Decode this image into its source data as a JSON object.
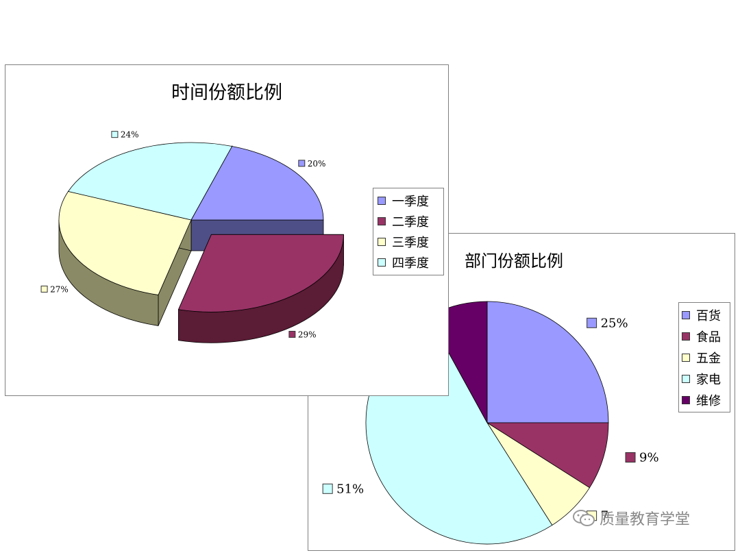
{
  "chart_data": [
    {
      "type": "pie",
      "title": "时间份额比例",
      "categories": [
        "一季度",
        "二季度",
        "三季度",
        "四季度"
      ],
      "values": [
        20,
        29,
        27,
        24
      ],
      "data_labels": [
        "20%",
        "29%",
        "27%",
        "24%"
      ],
      "colors": [
        "#9999ff",
        "#993366",
        "#ffffcc",
        "#ccffff"
      ],
      "side_colors": [
        "#4f4f87",
        "#5b1c35",
        "#8a8a66",
        "#6e8a8a"
      ],
      "exploded": "二季度",
      "style": "3d",
      "legend": "right"
    },
    {
      "type": "pie",
      "title": "部门份额比例",
      "categories": [
        "百货",
        "食品",
        "五金",
        "家电",
        "维修"
      ],
      "values": [
        25,
        9,
        7,
        51,
        8
      ],
      "data_labels": [
        "25%",
        "9%",
        "7",
        "51%",
        ""
      ],
      "colors": [
        "#9999ff",
        "#993366",
        "#ffffcc",
        "#ccffff",
        "#660066"
      ],
      "legend": "right"
    }
  ],
  "watermark": {
    "text": "质量教育学堂",
    "icon": "wechat-icon"
  }
}
